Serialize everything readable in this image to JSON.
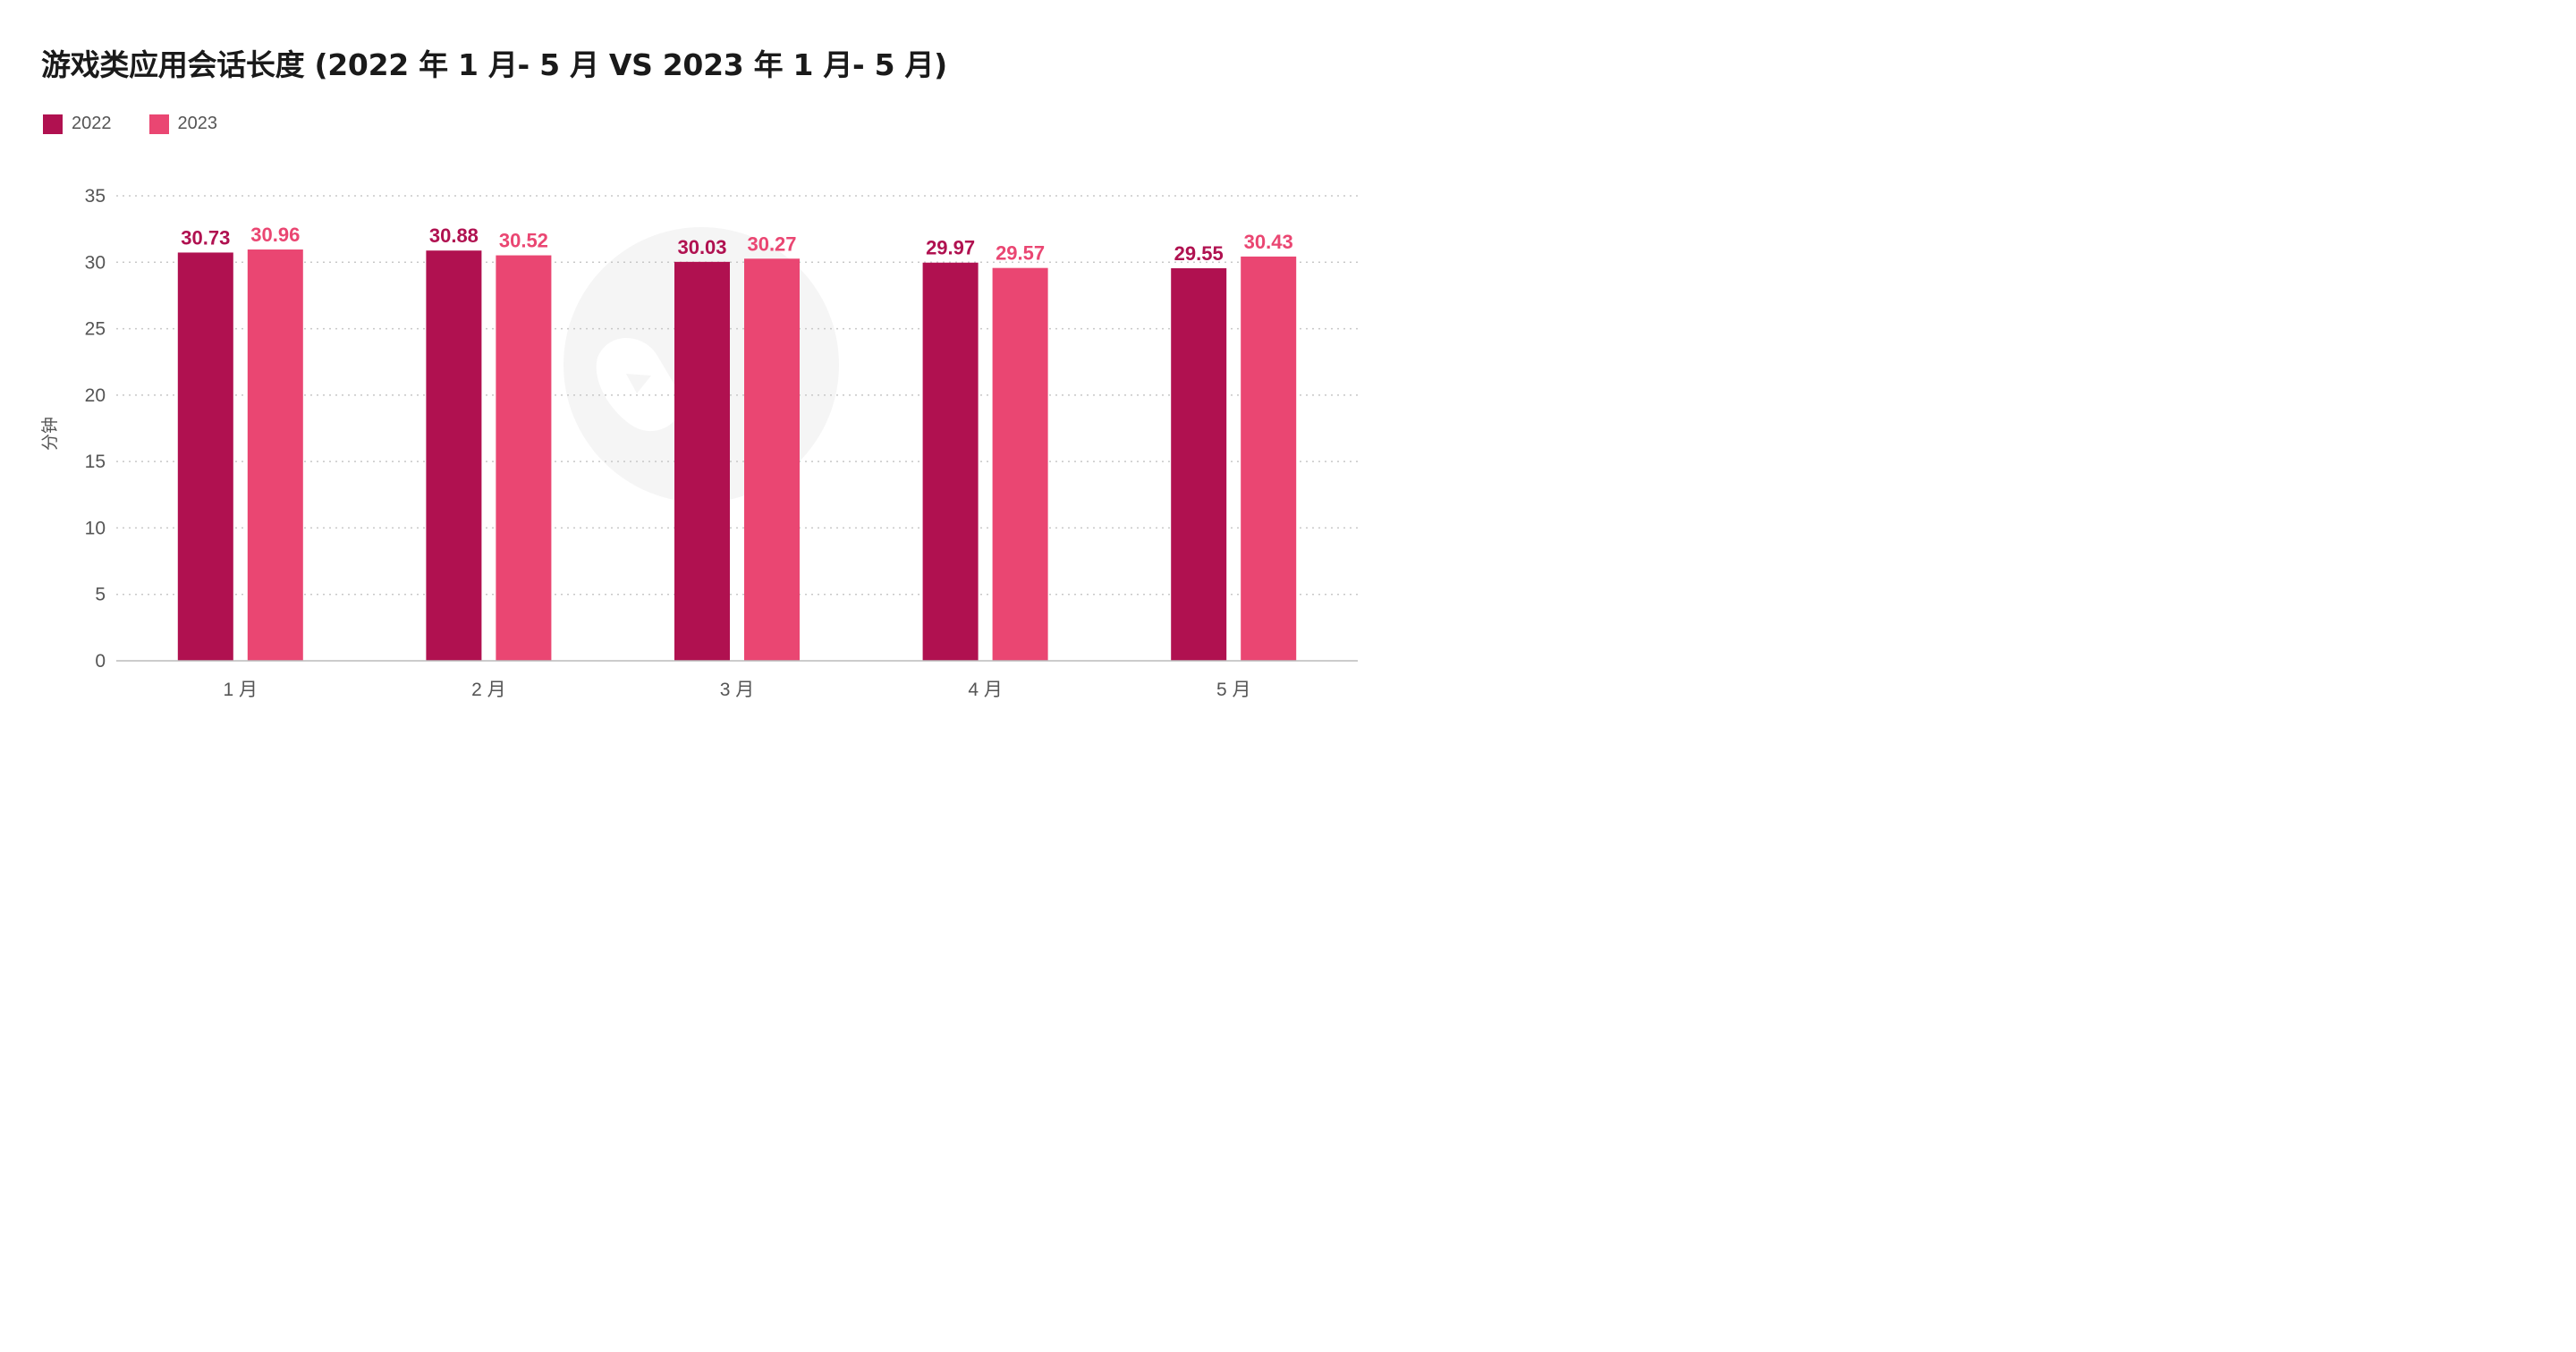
{
  "title": "游戏类应用会话长度 (2022 年 1 月- 5 月 VS 2023 年 1 月- 5 月)",
  "colors": {
    "s2022": "#B01150",
    "s2023": "#EA4672",
    "grid": "#c8c8c8",
    "axis": "#bbbbbb"
  },
  "chart_data": {
    "type": "bar",
    "title": "游戏类应用会话长度 (2022 年 1 月- 5 月 VS 2023 年 1 月- 5 月)",
    "categories": [
      "1 月",
      "2 月",
      "3 月",
      "4 月",
      "5 月"
    ],
    "series": [
      {
        "name": "2022",
        "values": [
          30.73,
          30.88,
          30.03,
          29.97,
          29.55
        ]
      },
      {
        "name": "2023",
        "values": [
          30.96,
          30.52,
          30.27,
          29.57,
          30.43
        ]
      }
    ],
    "data_labels": [
      [
        "30.73",
        "30.88",
        "30.03",
        "29.97",
        "29.55"
      ],
      [
        "30.96",
        "30.52",
        "30.27",
        "29.57",
        "30.43"
      ]
    ],
    "ylabel": "分钟",
    "xlabel": "",
    "ylim": [
      0,
      35
    ],
    "yticks": [
      "0",
      "5",
      "10",
      "15",
      "20",
      "25",
      "30",
      "35"
    ],
    "grid": true,
    "legend": "top-left"
  }
}
